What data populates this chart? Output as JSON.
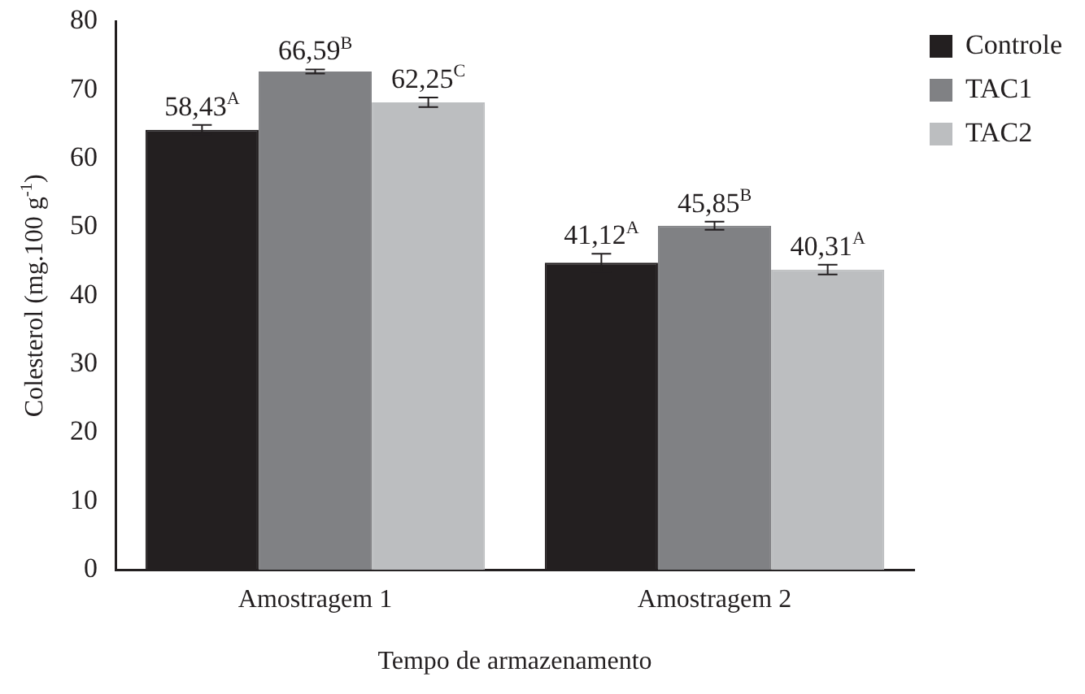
{
  "chart_data": {
    "type": "bar",
    "xlabel": "Tempo de armazenamento",
    "ylabel": "Colesterol (mg.100 g$^{-1}$)",
    "categories": [
      "Amostragem 1",
      "Amostragem 2"
    ],
    "series": [
      {
        "name": "Controle",
        "color": "#231f20",
        "values": [
          64.2,
          44.8
        ],
        "errors": [
          0.7,
          1.3
        ]
      },
      {
        "name": "TAC1",
        "color": "#808184",
        "values": [
          72.7,
          50.2
        ],
        "errors": [
          0.3,
          0.6
        ]
      },
      {
        "name": "TAC2",
        "color": "#bcbec0",
        "values": [
          68.2,
          43.8
        ],
        "errors": [
          0.7,
          0.7
        ]
      }
    ],
    "annotations": [
      "58,43$^{A}$",
      "41,12$^{A}$",
      "66,59$^{B}$",
      "45,85$^{B}$",
      "62,25$^{C}$",
      "40,31$^{A}$"
    ],
    "ylim": [
      0,
      80
    ],
    "yticks": [
      0,
      10,
      20,
      30,
      40,
      50,
      60,
      70,
      80
    ],
    "grid": false,
    "legend": "top right"
  }
}
